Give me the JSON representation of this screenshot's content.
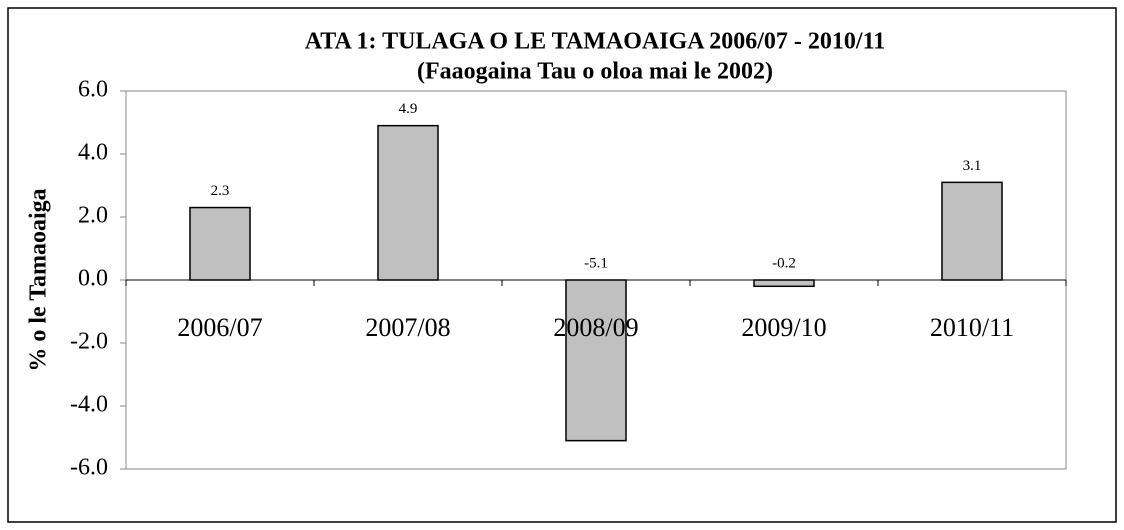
{
  "chart_data": {
    "type": "bar",
    "title": "ATA 1: TULAGA O LE TAMAOAIGA 2006/07 - 2010/11",
    "subtitle": "(Faaogaina Tau o oloa mai le 2002)",
    "y_label": "% o le Tamaoaiga",
    "categories": [
      "2006/07",
      "2007/08",
      "2008/09",
      "2009/10",
      "2010/11"
    ],
    "values": [
      2.3,
      4.9,
      -5.1,
      -0.2,
      3.1
    ],
    "color": "#c0c0c0",
    "ylim": [
      -6,
      6
    ],
    "yticks": [
      {
        "value": -6,
        "label": "-6.0"
      },
      {
        "value": -4,
        "label": "-4.0"
      },
      {
        "value": -2,
        "label": "-2.0"
      },
      {
        "value": 0,
        "label": "0.0"
      },
      {
        "value": 2,
        "label": "2.0"
      },
      {
        "value": 4,
        "label": "4.0"
      },
      {
        "value": 6,
        "label": "6.0"
      }
    ],
    "grid": false
  }
}
